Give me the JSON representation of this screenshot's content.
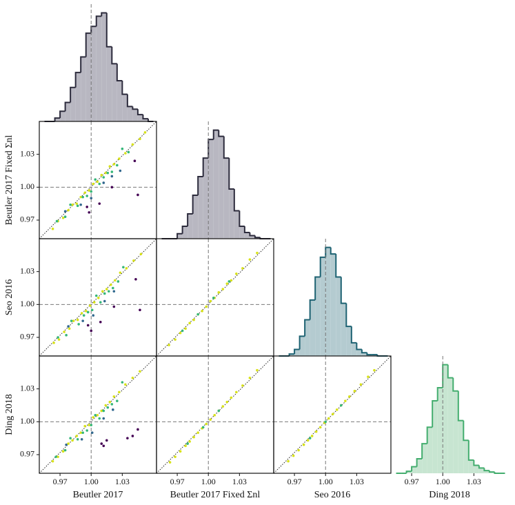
{
  "chart_data": [
    {
      "type": "histogram",
      "color": "#2c2b3c",
      "fill_color": "#b8b7c1",
      "xlim": [
        0.95,
        1.063
      ],
      "reference_line": 1,
      "bins": [
        0.955,
        0.96,
        0.965,
        0.97,
        0.975,
        0.98,
        0.985,
        0.99,
        0.995,
        1.0,
        1.005,
        1.01,
        1.015,
        1.02,
        1.025,
        1.03,
        1.035,
        1.04,
        1.045,
        1.05,
        1.055,
        1.06
      ],
      "counts": [
        0,
        0,
        5,
        15,
        28,
        50,
        72,
        95,
        130,
        140,
        155,
        160,
        110,
        85,
        60,
        40,
        22,
        18,
        10,
        4,
        0
      ]
    },
    {
      "type": "scatter",
      "xlim": [
        0.95,
        1.063
      ],
      "ylim": [
        0.953,
        1.06
      ],
      "reference_line": 1,
      "ylabel": "Beutler 2017 Fixed Σnl",
      "yticks": [
        0.97,
        {
          "value": 1,
          "label": "1.00"
        },
        1.03
      ],
      "series": [
        {
          "color": "#d8e219",
          "x": [
            0.963,
            0.968,
            0.973,
            0.978,
            0.982,
            0.986,
            0.99,
            0.994,
            0.998,
            1.002,
            1.006,
            1.01,
            1.014,
            1.018,
            1.022,
            1.027,
            1.033,
            1.04,
            1.047,
            1.052
          ],
          "values": [
            0.962,
            0.969,
            0.972,
            0.979,
            0.984,
            0.985,
            0.991,
            0.995,
            0.997,
            1.003,
            1.005,
            1.011,
            1.013,
            1.019,
            1.021,
            1.026,
            1.031,
            1.039,
            1.044,
            1.05
          ]
        },
        {
          "color": "#35b779",
          "x": [
            0.967,
            0.975,
            0.98,
            0.987,
            0.992,
            0.996,
            1.0,
            1.004,
            1.008,
            1.012,
            1.016,
            1.02,
            1.025,
            1.03,
            1.036
          ],
          "values": [
            0.969,
            0.973,
            0.984,
            0.983,
            0.991,
            0.992,
            0.996,
            1.007,
            1.003,
            1.009,
            1.013,
            1.014,
            1.02,
            1.035,
            1.032
          ]
        },
        {
          "color": "#31688e",
          "x": [
            0.975,
            0.99,
            1.0,
            1.012,
            1.02,
            1.028
          ],
          "values": [
            0.978,
            0.984,
            0.99,
            1.004,
            1.01,
            1.015
          ]
        },
        {
          "color": "#440154",
          "x": [
            0.996,
            0.998,
            1.008,
            1.02,
            1.042,
            1.045
          ],
          "values": [
            0.982,
            0.977,
            0.985,
            1.0,
            1.024,
            0.993
          ]
        }
      ]
    },
    {
      "type": "histogram",
      "color": "#2c2b3c",
      "fill_color": "#b8b7c1",
      "xlim": [
        0.95,
        1.063
      ],
      "reference_line": 1,
      "bins": [
        0.955,
        0.96,
        0.965,
        0.97,
        0.975,
        0.98,
        0.985,
        0.99,
        0.995,
        1.0,
        1.005,
        1.01,
        1.015,
        1.02,
        1.025,
        1.03,
        1.035,
        1.04,
        1.045,
        1.05,
        1.055,
        1.06
      ],
      "counts": [
        0,
        0,
        0,
        8,
        20,
        40,
        70,
        100,
        130,
        160,
        175,
        165,
        130,
        80,
        45,
        20,
        10,
        5,
        2,
        0,
        0
      ]
    },
    {
      "type": "scatter",
      "xlim": [
        0.95,
        1.063
      ],
      "ylim": [
        0.953,
        1.06
      ],
      "reference_line": 1,
      "ylabel": "Seo 2016",
      "yticks": [
        0.97,
        {
          "value": 1,
          "label": "1.00"
        },
        1.03
      ],
      "series": [
        {
          "color": "#d8e219",
          "x": [
            0.964,
            0.969,
            0.974,
            0.979,
            0.983,
            0.987,
            0.991,
            0.995,
            0.999,
            1.003,
            1.007,
            1.011,
            1.015,
            1.019,
            1.023,
            1.028,
            1.034,
            1.041,
            1.048
          ],
          "values": [
            0.965,
            0.968,
            0.975,
            0.978,
            0.985,
            0.986,
            0.992,
            0.994,
            0.999,
            1.002,
            1.006,
            1.012,
            1.014,
            1.018,
            1.022,
            1.029,
            1.033,
            1.04,
            1.046
          ]
        },
        {
          "color": "#35b779",
          "x": [
            0.968,
            0.976,
            0.981,
            0.988,
            0.993,
            0.997,
            1.001,
            1.005,
            1.009,
            1.013,
            1.017,
            1.021,
            1.026,
            1.031
          ],
          "values": [
            0.97,
            0.972,
            0.985,
            0.982,
            0.99,
            0.993,
            0.995,
            1.008,
            1.002,
            1.01,
            1.012,
            1.015,
            1.021,
            1.034
          ]
        },
        {
          "color": "#31688e",
          "x": [
            0.978,
            0.992,
            1.002,
            1.013,
            1.022
          ],
          "values": [
            0.98,
            0.985,
            0.99,
            1.003,
            1.012
          ]
        },
        {
          "color": "#440154",
          "x": [
            0.997,
            1.0,
            1.009,
            1.022,
            1.043,
            1.047
          ],
          "values": [
            0.981,
            0.976,
            0.984,
            0.998,
            1.023,
            0.995
          ]
        }
      ]
    },
    {
      "type": "scatter",
      "xlim": [
        0.95,
        1.063
      ],
      "ylim": [
        0.953,
        1.06
      ],
      "reference_line": 1,
      "series": [
        {
          "color": "#d8e219",
          "x": [
            0.962,
            0.968,
            0.973,
            0.978,
            0.982,
            0.986,
            0.99,
            0.994,
            0.998,
            1.002,
            1.006,
            1.01,
            1.014,
            1.018,
            1.022,
            1.027,
            1.033,
            1.04,
            1.047
          ],
          "values": [
            0.963,
            0.968,
            0.974,
            0.978,
            0.983,
            0.986,
            0.991,
            0.994,
            0.998,
            1.003,
            1.006,
            1.011,
            1.014,
            1.019,
            1.022,
            1.028,
            1.033,
            1.041,
            1.047
          ]
        },
        {
          "color": "#35b779",
          "x": [
            0.975,
            0.99,
            1.005,
            1.02
          ],
          "values": [
            0.976,
            0.991,
            1.006,
            1.021
          ]
        }
      ]
    },
    {
      "type": "histogram",
      "color": "#1d6272",
      "fill_color": "#b4cbd0",
      "xlim": [
        0.95,
        1.063
      ],
      "reference_line": 1,
      "bins": [
        0.955,
        0.96,
        0.965,
        0.97,
        0.975,
        0.98,
        0.985,
        0.99,
        0.995,
        1.0,
        1.005,
        1.01,
        1.015,
        1.02,
        1.025,
        1.03,
        1.035,
        1.04,
        1.045,
        1.05,
        1.055,
        1.06
      ],
      "counts": [
        0,
        0,
        3,
        10,
        30,
        55,
        85,
        120,
        150,
        165,
        155,
        120,
        80,
        45,
        20,
        10,
        5,
        2,
        2,
        0,
        0
      ]
    },
    {
      "type": "scatter",
      "xlim": [
        0.95,
        1.063
      ],
      "ylim": [
        0.953,
        1.06
      ],
      "reference_line": 1,
      "xlabel": "Beutler 2017",
      "ylabel": "Ding 2018",
      "xticks": [
        0.97,
        {
          "value": 1,
          "label": "1.00"
        },
        1.03
      ],
      "yticks": [
        0.97,
        {
          "value": 1,
          "label": "1.00"
        },
        1.03
      ],
      "series": [
        {
          "color": "#d8e219",
          "x": [
            0.963,
            0.968,
            0.973,
            0.978,
            0.982,
            0.986,
            0.99,
            0.994,
            0.998,
            1.002,
            1.006,
            1.01,
            1.014,
            1.018,
            1.022,
            1.027,
            1.033,
            1.04,
            1.047
          ],
          "values": [
            0.964,
            0.968,
            0.973,
            0.98,
            0.983,
            0.987,
            0.99,
            0.996,
            0.997,
            1.004,
            1.006,
            1.01,
            1.015,
            1.018,
            1.023,
            1.027,
            1.034,
            1.04,
            1.046
          ]
        },
        {
          "color": "#35b779",
          "x": [
            0.966,
            0.975,
            0.98,
            0.987,
            0.992,
            0.996,
            1.0,
            1.004,
            1.008,
            1.012,
            1.016,
            1.02,
            1.025,
            1.03
          ],
          "values": [
            0.968,
            0.974,
            0.985,
            0.984,
            0.99,
            0.992,
            0.997,
            1.006,
            1.003,
            1.01,
            1.013,
            1.016,
            1.019,
            1.036
          ]
        },
        {
          "color": "#31688e",
          "x": [
            0.976,
            0.991,
            1.001,
            1.012,
            1.021
          ],
          "values": [
            0.979,
            0.984,
            0.99,
            1.003,
            1.011
          ]
        },
        {
          "color": "#440154",
          "x": [
            1.01,
            1.015,
            1.012,
            1.035,
            1.04,
            1.045
          ],
          "values": [
            0.98,
            0.983,
            0.978,
            0.985,
            0.987,
            0.993
          ]
        }
      ]
    },
    {
      "type": "scatter",
      "xlim": [
        0.95,
        1.063
      ],
      "ylim": [
        0.953,
        1.06
      ],
      "reference_line": 1,
      "xlabel": "Beutler 2017 Fixed Σnl",
      "xticks": [
        0.97,
        {
          "value": 1,
          "label": "1.00"
        },
        1.03
      ],
      "series": [
        {
          "color": "#d8e219",
          "x": [
            0.963,
            0.968,
            0.973,
            0.978,
            0.982,
            0.986,
            0.99,
            0.994,
            0.998,
            1.002,
            1.006,
            1.01,
            1.014,
            1.018,
            1.022,
            1.027,
            1.033,
            1.04,
            1.047
          ],
          "values": [
            0.963,
            0.968,
            0.973,
            0.978,
            0.982,
            0.986,
            0.99,
            0.994,
            0.998,
            1.002,
            1.006,
            1.01,
            1.014,
            1.018,
            1.022,
            1.027,
            1.033,
            1.04,
            1.047
          ]
        },
        {
          "color": "#35b779",
          "x": [
            0.98,
            0.995,
            1.01
          ],
          "values": [
            0.98,
            0.995,
            1.01
          ]
        }
      ]
    },
    {
      "type": "scatter",
      "xlim": [
        0.95,
        1.063
      ],
      "ylim": [
        0.953,
        1.06
      ],
      "reference_line": 1,
      "xlabel": "Seo 2016",
      "xticks": [
        0.97,
        {
          "value": 1,
          "label": "1.00"
        },
        1.03
      ],
      "series": [
        {
          "color": "#d8e219",
          "x": [
            0.964,
            0.969,
            0.974,
            0.979,
            0.983,
            0.987,
            0.991,
            0.995,
            0.999,
            1.003,
            1.007,
            1.011,
            1.015,
            1.019,
            1.023,
            1.028,
            1.034,
            1.041,
            1.047
          ],
          "values": [
            0.964,
            0.969,
            0.974,
            0.979,
            0.983,
            0.987,
            0.991,
            0.995,
            0.999,
            1.003,
            1.007,
            1.011,
            1.015,
            1.019,
            1.023,
            1.028,
            1.034,
            1.041,
            1.047
          ]
        },
        {
          "color": "#35b779",
          "x": [
            0.985,
            1.0,
            1.015
          ],
          "values": [
            0.985,
            1.0,
            1.015
          ]
        }
      ]
    },
    {
      "type": "histogram",
      "color": "#43ad6e",
      "fill_color": "#c7e5d1",
      "xlim": [
        0.95,
        1.063
      ],
      "reference_line": 1,
      "xlabel": "Ding 2018",
      "xticks": [
        0.97,
        {
          "value": 1,
          "label": "1.00"
        },
        1.03
      ],
      "bins": [
        0.955,
        0.96,
        0.965,
        0.97,
        0.975,
        0.98,
        0.985,
        0.99,
        0.995,
        1.0,
        1.005,
        1.01,
        1.015,
        1.02,
        1.025,
        1.03,
        1.035,
        1.04,
        1.045,
        1.05,
        1.055,
        1.06
      ],
      "counts": [
        0,
        0,
        3,
        10,
        22,
        45,
        70,
        110,
        130,
        165,
        145,
        125,
        80,
        50,
        20,
        12,
        8,
        4,
        2,
        0,
        0
      ]
    }
  ]
}
